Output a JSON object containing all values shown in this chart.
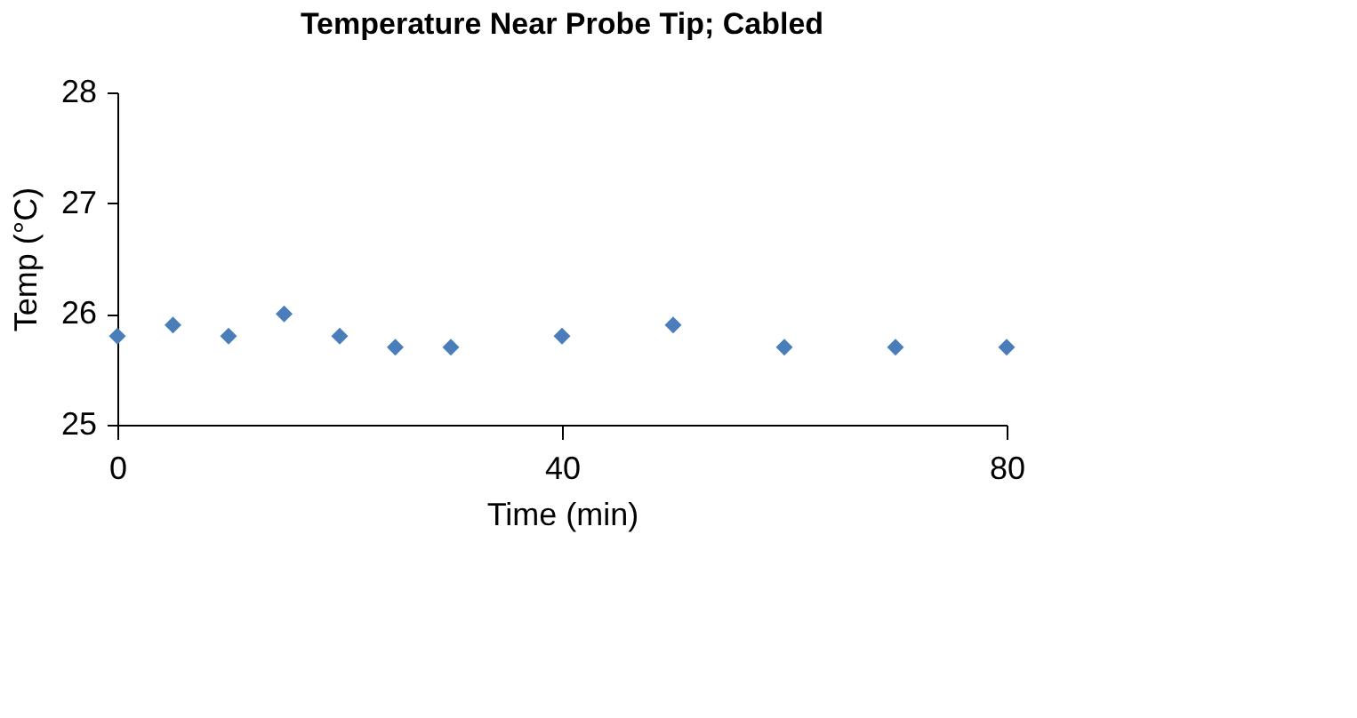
{
  "chart_data": {
    "type": "scatter",
    "title": "Temperature Near Probe Tip; Cabled",
    "xlabel": "Time (min)",
    "ylabel": "Temp (°C)",
    "x": [
      0,
      5,
      10,
      15,
      20,
      25,
      30,
      40,
      50,
      60,
      70,
      80
    ],
    "series": [
      {
        "color": "#4a7ebb",
        "values": [
          25.8,
          25.9,
          25.8,
          26.0,
          25.8,
          25.7,
          25.7,
          25.8,
          25.9,
          25.7,
          25.7,
          25.7
        ]
      }
    ],
    "xlim": [
      0,
      80
    ],
    "xticks": [
      0,
      40,
      80
    ],
    "ylim": [
      25,
      28
    ],
    "yticks": [
      25,
      26,
      27,
      28
    ],
    "grid": false,
    "legend": false,
    "marker": "diamond"
  }
}
